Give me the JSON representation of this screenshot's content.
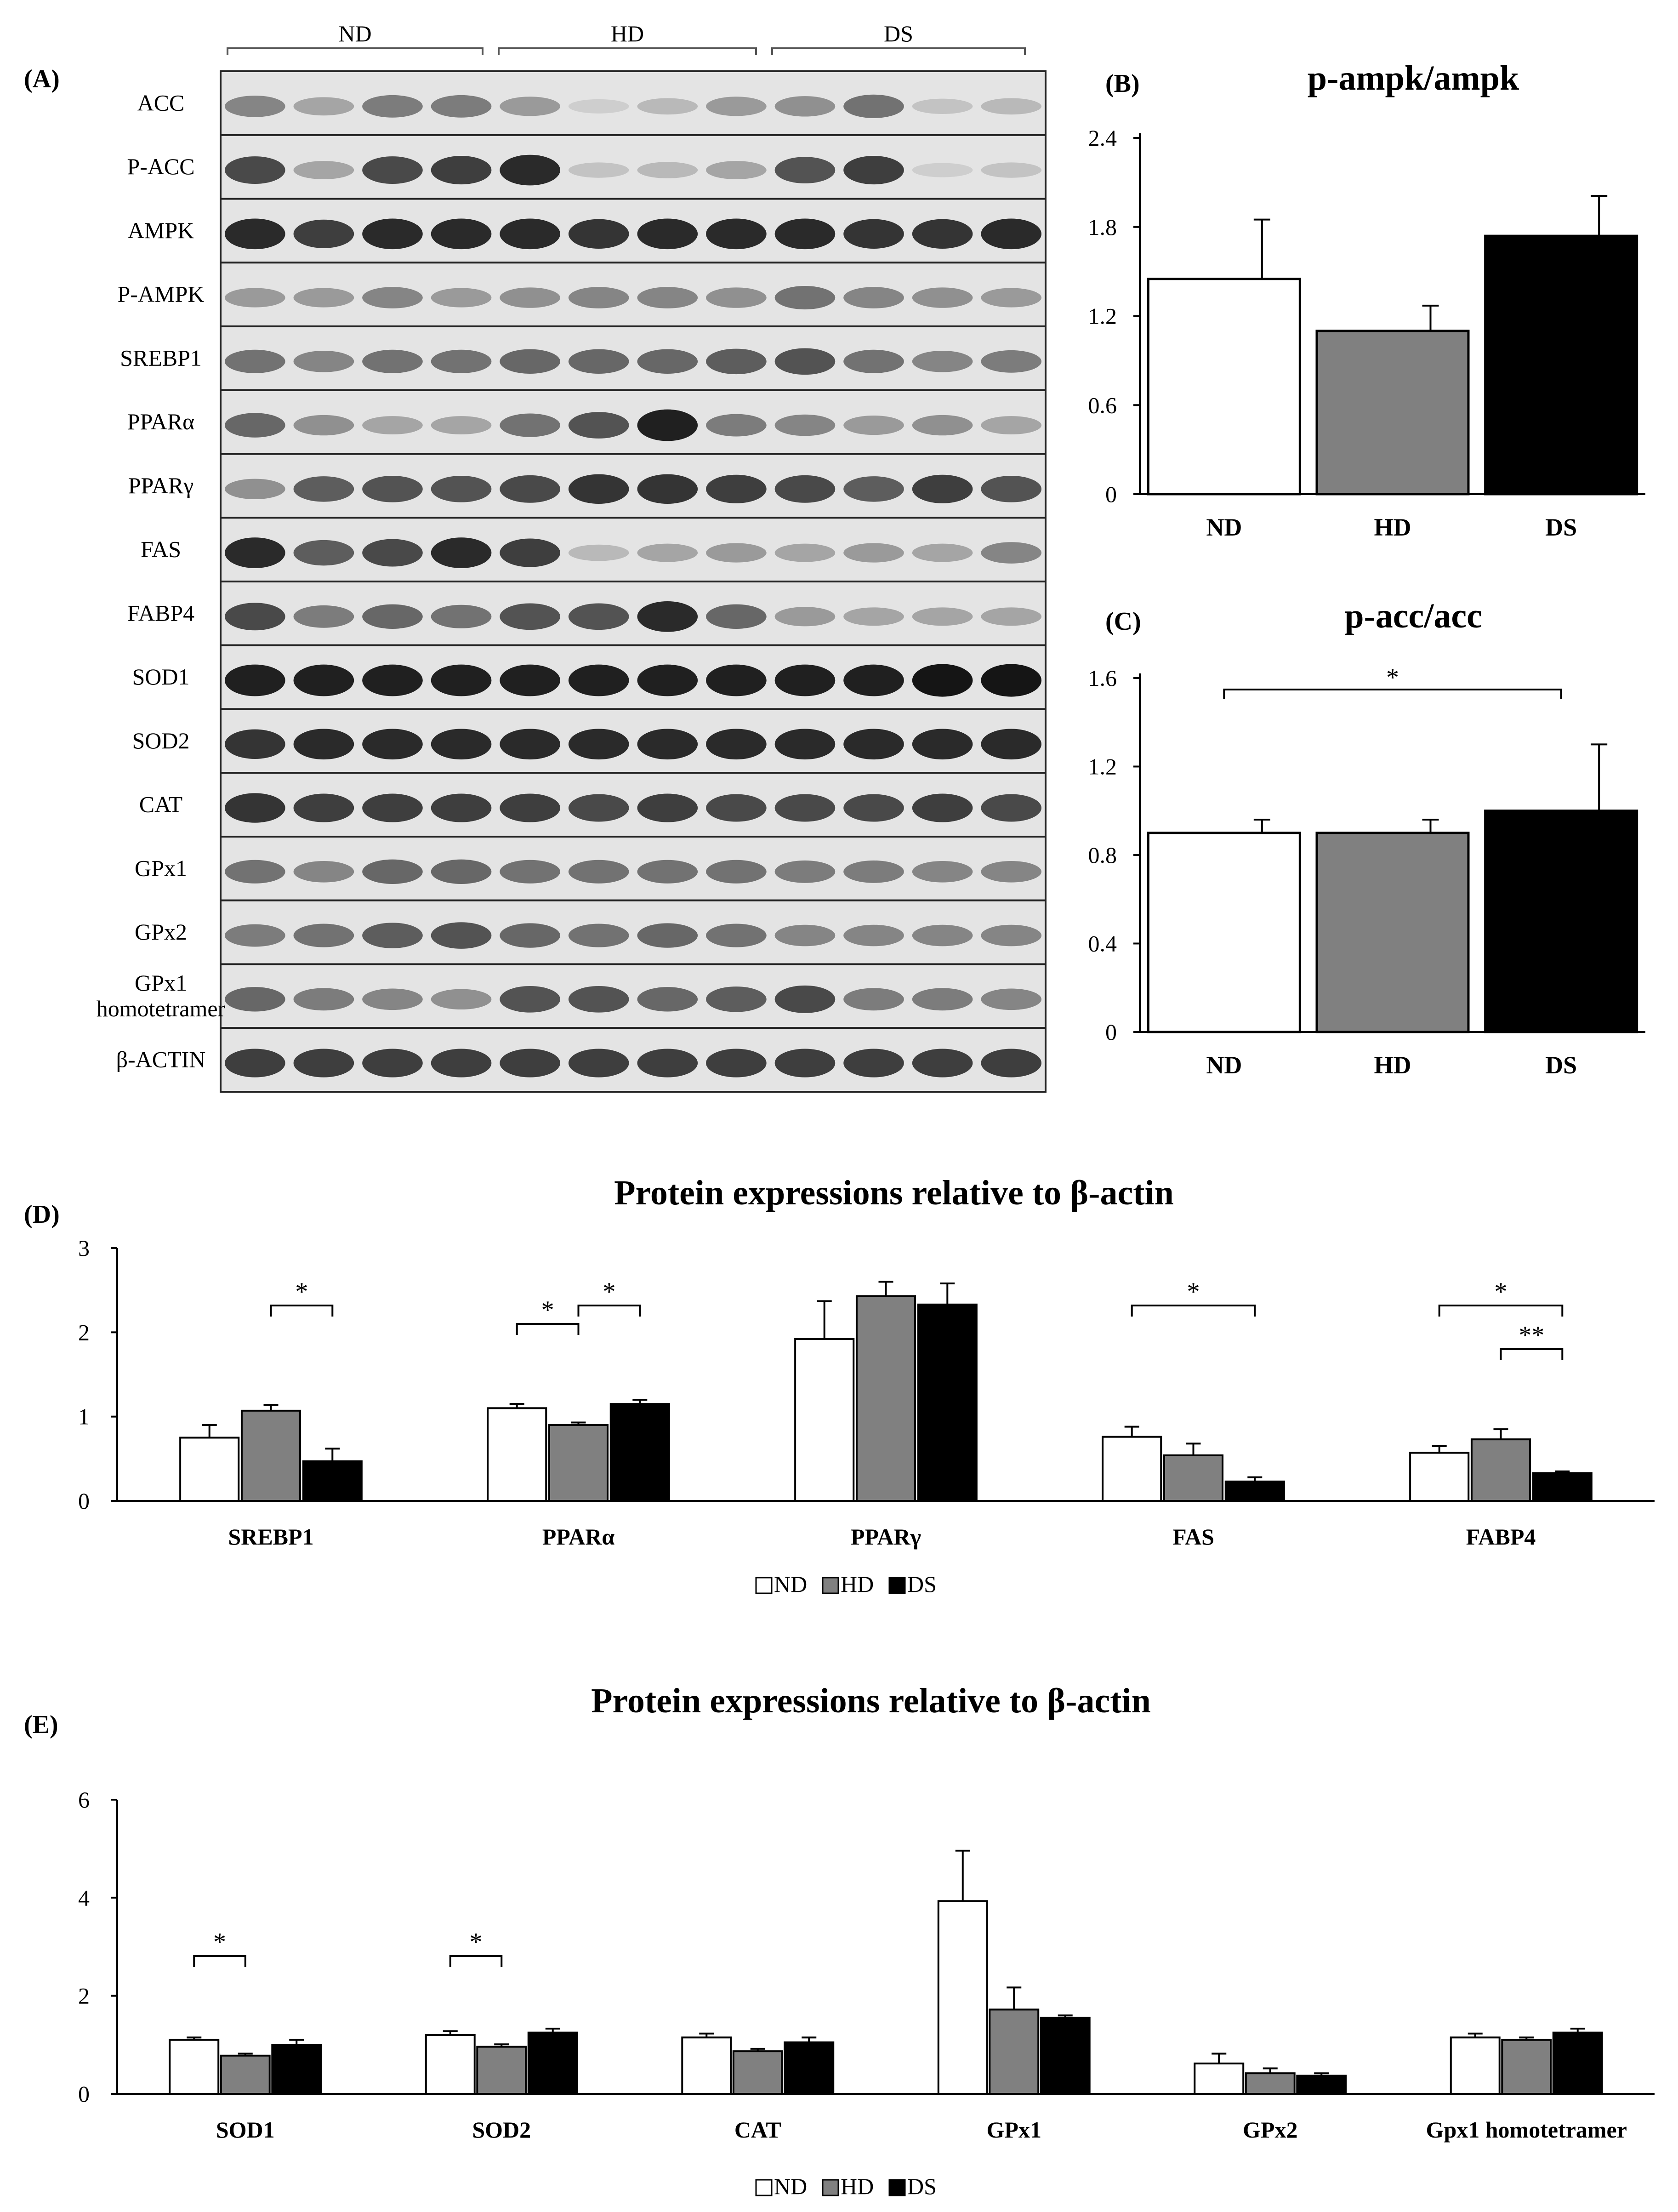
{
  "panels": {
    "A": {
      "label": "(A)",
      "groups": [
        "ND",
        "HD",
        "DS"
      ],
      "lanes_per_group": 4,
      "blots": [
        {
          "name": "ACC",
          "intensity": [
            0.45,
            0.3,
            0.5,
            0.5,
            0.35,
            0.1,
            0.2,
            0.35,
            0.4,
            0.55,
            0.15,
            0.2
          ]
        },
        {
          "name": "P-ACC",
          "intensity": [
            0.75,
            0.3,
            0.75,
            0.8,
            0.9,
            0.15,
            0.2,
            0.3,
            0.7,
            0.8,
            0.1,
            0.15
          ]
        },
        {
          "name": "AMPK",
          "intensity": [
            0.9,
            0.8,
            0.9,
            0.9,
            0.9,
            0.85,
            0.9,
            0.9,
            0.9,
            0.85,
            0.85,
            0.9
          ]
        },
        {
          "name": "P-AMPK",
          "intensity": [
            0.35,
            0.35,
            0.45,
            0.35,
            0.4,
            0.45,
            0.45,
            0.4,
            0.55,
            0.45,
            0.4,
            0.35
          ]
        },
        {
          "name": "SREBP1",
          "intensity": [
            0.55,
            0.45,
            0.55,
            0.55,
            0.6,
            0.6,
            0.6,
            0.65,
            0.7,
            0.55,
            0.45,
            0.5
          ]
        },
        {
          "name": "PPARα",
          "intensity": [
            0.6,
            0.4,
            0.3,
            0.3,
            0.55,
            0.7,
            0.95,
            0.5,
            0.45,
            0.35,
            0.4,
            0.3
          ]
        },
        {
          "name": "PPARγ",
          "intensity": [
            0.4,
            0.65,
            0.7,
            0.7,
            0.75,
            0.85,
            0.85,
            0.8,
            0.75,
            0.65,
            0.8,
            0.7
          ]
        },
        {
          "name": "FAS",
          "intensity": [
            0.9,
            0.65,
            0.75,
            0.9,
            0.8,
            0.2,
            0.3,
            0.35,
            0.3,
            0.35,
            0.3,
            0.45
          ]
        },
        {
          "name": "FABP4",
          "intensity": [
            0.75,
            0.5,
            0.6,
            0.55,
            0.7,
            0.7,
            0.9,
            0.6,
            0.35,
            0.3,
            0.3,
            0.3
          ]
        },
        {
          "name": "SOD1",
          "intensity": [
            0.95,
            0.95,
            0.95,
            0.95,
            0.95,
            0.95,
            0.95,
            0.95,
            0.95,
            0.95,
            1.0,
            1.0
          ]
        },
        {
          "name": "SOD2",
          "intensity": [
            0.85,
            0.9,
            0.9,
            0.9,
            0.9,
            0.9,
            0.9,
            0.9,
            0.9,
            0.9,
            0.9,
            0.9
          ]
        },
        {
          "name": "CAT",
          "intensity": [
            0.85,
            0.8,
            0.8,
            0.8,
            0.8,
            0.75,
            0.8,
            0.75,
            0.75,
            0.75,
            0.8,
            0.75
          ]
        },
        {
          "name": "GPx1",
          "intensity": [
            0.55,
            0.45,
            0.6,
            0.6,
            0.55,
            0.55,
            0.55,
            0.55,
            0.5,
            0.5,
            0.45,
            0.45
          ]
        },
        {
          "name": "GPx2",
          "intensity": [
            0.5,
            0.55,
            0.65,
            0.7,
            0.6,
            0.55,
            0.6,
            0.55,
            0.45,
            0.45,
            0.45,
            0.45
          ]
        },
        {
          "name": "GPx1\nhomotetramer",
          "intensity": [
            0.6,
            0.5,
            0.45,
            0.4,
            0.7,
            0.7,
            0.6,
            0.65,
            0.75,
            0.5,
            0.5,
            0.45
          ]
        },
        {
          "name": "β-ACTIN",
          "intensity": [
            0.8,
            0.8,
            0.8,
            0.8,
            0.8,
            0.8,
            0.8,
            0.8,
            0.8,
            0.8,
            0.8,
            0.8
          ]
        }
      ]
    },
    "B_label": "(B)",
    "C_label": "(C)",
    "D_label": "(D)",
    "E_label": "(E)"
  },
  "legend": {
    "items": [
      "ND",
      "HD",
      "DS"
    ]
  },
  "colors": {
    "ND": "#ffffff",
    "HD": "#808080",
    "DS": "#000000",
    "axis": "#000000"
  },
  "chart_data": [
    {
      "id": "B",
      "type": "bar",
      "title": "p-ampk/ampk",
      "categories": [
        "ND",
        "HD",
        "DS"
      ],
      "values": [
        1.45,
        1.1,
        1.74
      ],
      "errors": [
        0.4,
        0.17,
        0.27
      ],
      "ylim": [
        0,
        2.4
      ],
      "yticks": [
        "0",
        "0.6",
        "1.2",
        "1.8",
        "2.4"
      ],
      "significance": []
    },
    {
      "id": "C",
      "type": "bar",
      "title": "p-acc/acc",
      "categories": [
        "ND",
        "HD",
        "DS"
      ],
      "values": [
        0.9,
        0.9,
        1.0
      ],
      "errors": [
        0.06,
        0.06,
        0.3
      ],
      "ylim": [
        0,
        1.6
      ],
      "yticks": [
        "0",
        "0.4",
        "0.8",
        "1.2",
        "1.6"
      ],
      "significance": [
        {
          "from": 0,
          "to": 2,
          "mark": "*"
        }
      ]
    },
    {
      "id": "D",
      "type": "bar",
      "title": "Protein expressions relative to β-actin",
      "categories": [
        "SREBP1",
        "PPARα",
        "PPARγ",
        "FAS",
        "FABP4"
      ],
      "series": [
        {
          "name": "ND",
          "values": [
            0.75,
            1.1,
            1.92,
            0.76,
            0.57
          ],
          "errors": [
            0.15,
            0.05,
            0.45,
            0.12,
            0.08
          ]
        },
        {
          "name": "HD",
          "values": [
            1.07,
            0.9,
            2.43,
            0.54,
            0.73
          ],
          "errors": [
            0.07,
            0.03,
            0.17,
            0.14,
            0.12
          ]
        },
        {
          "name": "DS",
          "values": [
            0.47,
            1.15,
            2.33,
            0.23,
            0.33
          ],
          "errors": [
            0.15,
            0.05,
            0.25,
            0.05,
            0.02
          ]
        }
      ],
      "ylim": [
        0,
        3
      ],
      "yticks": [
        "0",
        "1",
        "2",
        "3"
      ],
      "significance": [
        {
          "cat": 0,
          "from": 1,
          "to": 2,
          "mark": "*"
        },
        {
          "cat": 1,
          "from": 0,
          "to": 1,
          "mark": "*"
        },
        {
          "cat": 1,
          "from": 1,
          "to": 2,
          "mark": "*"
        },
        {
          "cat": 3,
          "from": 0,
          "to": 2,
          "mark": "*"
        },
        {
          "cat": 4,
          "from": 0,
          "to": 2,
          "mark": "*"
        },
        {
          "cat": 4,
          "from": 1,
          "to": 2,
          "mark": "**"
        }
      ]
    },
    {
      "id": "E",
      "type": "bar",
      "title": "Protein expressions relative to β-actin",
      "categories": [
        "SOD1",
        "SOD2",
        "CAT",
        "GPx1",
        "GPx2",
        "Gpx1 homotetramer"
      ],
      "series": [
        {
          "name": "ND",
          "values": [
            1.1,
            1.2,
            1.15,
            3.93,
            0.62,
            1.15
          ],
          "errors": [
            0.05,
            0.08,
            0.08,
            1.03,
            0.2,
            0.08
          ]
        },
        {
          "name": "HD",
          "values": [
            0.78,
            0.96,
            0.87,
            1.72,
            0.42,
            1.1
          ],
          "errors": [
            0.04,
            0.05,
            0.05,
            0.45,
            0.1,
            0.05
          ]
        },
        {
          "name": "DS",
          "values": [
            1.0,
            1.25,
            1.05,
            1.55,
            0.37,
            1.25
          ],
          "errors": [
            0.1,
            0.08,
            0.1,
            0.05,
            0.05,
            0.08
          ]
        }
      ],
      "ylim": [
        0,
        6
      ],
      "yticks": [
        "0",
        "2",
        "4",
        "6"
      ],
      "significance": [
        {
          "cat": 0,
          "from": 0,
          "to": 1,
          "mark": "*"
        },
        {
          "cat": 1,
          "from": 0,
          "to": 1,
          "mark": "*"
        }
      ]
    }
  ]
}
